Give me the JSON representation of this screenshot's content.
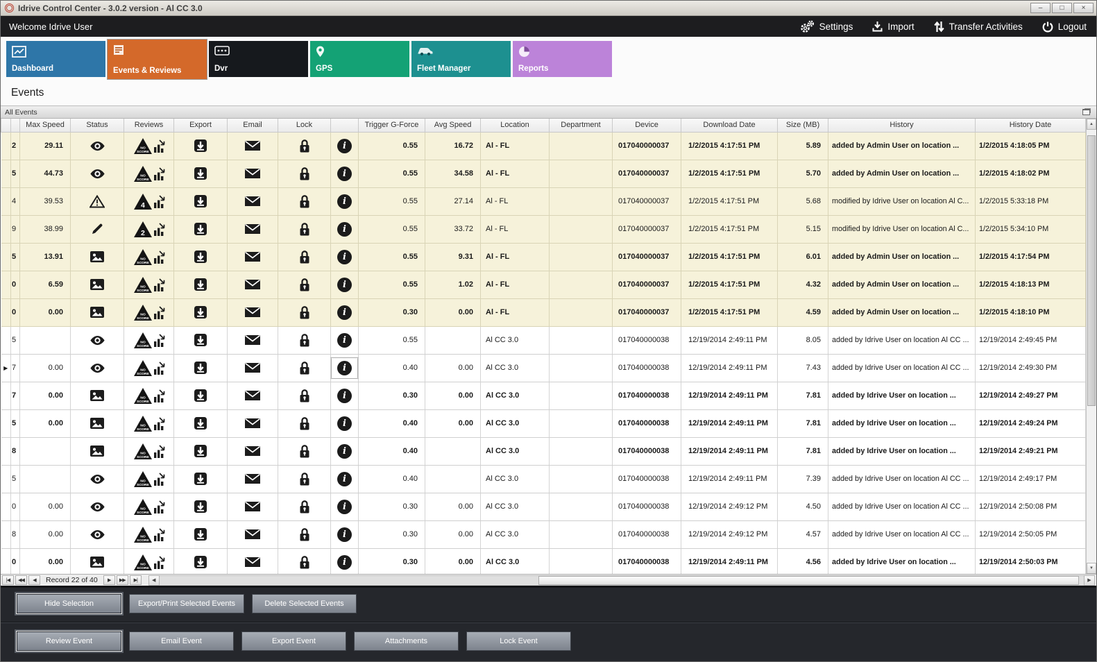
{
  "window": {
    "title": "Idrive Control Center - 3.0.2 version - Al CC 3.0",
    "controls": [
      {
        "name": "minimize",
        "glyph": "–"
      },
      {
        "name": "maximize",
        "glyph": "□"
      },
      {
        "name": "close",
        "glyph": "×"
      }
    ]
  },
  "topbar": {
    "welcome": "Welcome Idrive User",
    "actions": [
      {
        "label": "Settings",
        "icon": "gears"
      },
      {
        "label": "Import",
        "icon": "import"
      },
      {
        "label": "Transfer Activities",
        "icon": "transfer"
      },
      {
        "label": "Logout",
        "icon": "power"
      }
    ]
  },
  "tabs": [
    {
      "label": "Dashboard",
      "icon": "dashboard",
      "color": "#2e76a8",
      "active": false
    },
    {
      "label": "Events & Reviews",
      "icon": "events",
      "color": "#d4692a",
      "active": true
    },
    {
      "label": "Dvr",
      "icon": "dvr",
      "color": "#16191d",
      "active": false
    },
    {
      "label": "GPS",
      "icon": "gps",
      "color": "#14a275",
      "active": false
    },
    {
      "label": "Fleet Manager",
      "icon": "fleet",
      "color": "#1d9090",
      "active": false
    },
    {
      "label": "Reports",
      "icon": "reports",
      "color": "#bc83d9",
      "active": false
    }
  ],
  "page_title": "Events",
  "panel": {
    "title": "All Events"
  },
  "grid": {
    "columns": [
      "",
      "",
      "Max Speed",
      "Status",
      "Reviews",
      "Export",
      "Email",
      "Lock",
      "",
      "Trigger G-Force",
      "Avg Speed",
      "Location",
      "Department",
      "Device",
      "Download Date",
      "Size (MB)",
      "History",
      "History Date"
    ],
    "rows": [
      {
        "id": "2",
        "max_speed": "29.11",
        "status": "eye",
        "review": "no-score",
        "trigger": "0.55",
        "avg_speed": "16.72",
        "location": "Al - FL",
        "department": "",
        "device": "017040000037",
        "download_date": "1/2/2015 4:17:51 PM",
        "size": "5.89",
        "history": "added by Admin User on location ...",
        "history_date": "1/2/2015 4:18:05 PM",
        "bold": true,
        "tone": "beige",
        "selected": false,
        "info_focus": false
      },
      {
        "id": "5",
        "max_speed": "44.73",
        "status": "eye",
        "review": "no-score",
        "trigger": "0.55",
        "avg_speed": "34.58",
        "location": "Al - FL",
        "department": "",
        "device": "017040000037",
        "download_date": "1/2/2015 4:17:51 PM",
        "size": "5.70",
        "history": "added by Admin User on location ...",
        "history_date": "1/2/2015 4:18:02 PM",
        "bold": true,
        "tone": "beige",
        "selected": false,
        "info_focus": false
      },
      {
        "id": "4",
        "max_speed": "39.53",
        "status": "warning",
        "review": "4",
        "trigger": "0.55",
        "avg_speed": "27.14",
        "location": "Al - FL",
        "department": "",
        "device": "017040000037",
        "download_date": "1/2/2015 4:17:51 PM",
        "size": "5.68",
        "history": "modified by Idrive User on location Al C...",
        "history_date": "1/2/2015 5:33:18 PM",
        "bold": false,
        "tone": "beige",
        "selected": false,
        "info_focus": false
      },
      {
        "id": "9",
        "max_speed": "38.99",
        "status": "pencil",
        "review": "2",
        "trigger": "0.55",
        "avg_speed": "33.72",
        "location": "Al - FL",
        "department": "",
        "device": "017040000037",
        "download_date": "1/2/2015 4:17:51 PM",
        "size": "5.15",
        "history": "modified by Idrive User on location Al C...",
        "history_date": "1/2/2015 5:34:10 PM",
        "bold": false,
        "tone": "beige",
        "selected": false,
        "info_focus": false
      },
      {
        "id": "5",
        "max_speed": "13.91",
        "status": "image",
        "review": "no-score",
        "trigger": "0.55",
        "avg_speed": "9.31",
        "location": "Al - FL",
        "department": "",
        "device": "017040000037",
        "download_date": "1/2/2015 4:17:51 PM",
        "size": "6.01",
        "history": "added by Admin User on location ...",
        "history_date": "1/2/2015 4:17:54 PM",
        "bold": true,
        "tone": "beige",
        "selected": false,
        "info_focus": false
      },
      {
        "id": "0",
        "max_speed": "6.59",
        "status": "image",
        "review": "no-score",
        "trigger": "0.55",
        "avg_speed": "1.02",
        "location": "Al - FL",
        "department": "",
        "device": "017040000037",
        "download_date": "1/2/2015 4:17:51 PM",
        "size": "4.32",
        "history": "added by Admin User on location ...",
        "history_date": "1/2/2015 4:18:13 PM",
        "bold": true,
        "tone": "beige",
        "selected": false,
        "info_focus": false
      },
      {
        "id": "0",
        "max_speed": "0.00",
        "status": "image",
        "review": "no-score",
        "trigger": "0.30",
        "avg_speed": "0.00",
        "location": "Al - FL",
        "department": "",
        "device": "017040000037",
        "download_date": "1/2/2015 4:17:51 PM",
        "size": "4.59",
        "history": "added by Admin User on location ...",
        "history_date": "1/2/2015 4:18:10 PM",
        "bold": true,
        "tone": "beige",
        "selected": false,
        "info_focus": false
      },
      {
        "id": "5",
        "max_speed": "",
        "status": "eye",
        "review": "no-score",
        "trigger": "0.55",
        "avg_speed": "",
        "location": "Al CC 3.0",
        "department": "",
        "device": "017040000038",
        "download_date": "12/19/2014 2:49:11 PM",
        "size": "8.05",
        "history": "added by Idrive User on location Al CC ...",
        "history_date": "12/19/2014 2:49:45 PM",
        "bold": false,
        "tone": "white",
        "selected": false,
        "info_focus": false
      },
      {
        "id": "7",
        "max_speed": "0.00",
        "status": "eye",
        "review": "no-score",
        "trigger": "0.40",
        "avg_speed": "0.00",
        "location": "Al CC 3.0",
        "department": "",
        "device": "017040000038",
        "download_date": "12/19/2014 2:49:11 PM",
        "size": "7.43",
        "history": "added by Idrive User on location Al CC ...",
        "history_date": "12/19/2014 2:49:30 PM",
        "bold": false,
        "tone": "white",
        "selected": true,
        "info_focus": true
      },
      {
        "id": "7",
        "max_speed": "0.00",
        "status": "image",
        "review": "no-score",
        "trigger": "0.30",
        "avg_speed": "0.00",
        "location": "Al CC 3.0",
        "department": "",
        "device": "017040000038",
        "download_date": "12/19/2014 2:49:11 PM",
        "size": "7.81",
        "history": "added by Idrive User on location ...",
        "history_date": "12/19/2014 2:49:27 PM",
        "bold": true,
        "tone": "white",
        "selected": false,
        "info_focus": false
      },
      {
        "id": "5",
        "max_speed": "0.00",
        "status": "image",
        "review": "no-score",
        "trigger": "0.40",
        "avg_speed": "0.00",
        "location": "Al CC 3.0",
        "department": "",
        "device": "017040000038",
        "download_date": "12/19/2014 2:49:11 PM",
        "size": "7.81",
        "history": "added by Idrive User on location ...",
        "history_date": "12/19/2014 2:49:24 PM",
        "bold": true,
        "tone": "white",
        "selected": false,
        "info_focus": false
      },
      {
        "id": "8",
        "max_speed": "",
        "status": "image",
        "review": "no-score",
        "trigger": "0.40",
        "avg_speed": "",
        "location": "Al CC 3.0",
        "department": "",
        "device": "017040000038",
        "download_date": "12/19/2014 2:49:11 PM",
        "size": "7.81",
        "history": "added by Idrive User on location ...",
        "history_date": "12/19/2014 2:49:21 PM",
        "bold": true,
        "tone": "white",
        "selected": false,
        "info_focus": false
      },
      {
        "id": "5",
        "max_speed": "",
        "status": "eye",
        "review": "no-score",
        "trigger": "0.40",
        "avg_speed": "",
        "location": "Al CC 3.0",
        "department": "",
        "device": "017040000038",
        "download_date": "12/19/2014 2:49:11 PM",
        "size": "7.39",
        "history": "added by Idrive User on location Al CC ...",
        "history_date": "12/19/2014 2:49:17 PM",
        "bold": false,
        "tone": "white",
        "selected": false,
        "info_focus": false
      },
      {
        "id": "0",
        "max_speed": "0.00",
        "status": "eye",
        "review": "no-score",
        "trigger": "0.30",
        "avg_speed": "0.00",
        "location": "Al CC 3.0",
        "department": "",
        "device": "017040000038",
        "download_date": "12/19/2014 2:49:12 PM",
        "size": "4.50",
        "history": "added by Idrive User on location Al CC ...",
        "history_date": "12/19/2014 2:50:08 PM",
        "bold": false,
        "tone": "white",
        "selected": false,
        "info_focus": false
      },
      {
        "id": "8",
        "max_speed": "0.00",
        "status": "eye",
        "review": "no-score",
        "trigger": "0.30",
        "avg_speed": "0.00",
        "location": "Al CC 3.0",
        "department": "",
        "device": "017040000038",
        "download_date": "12/19/2014 2:49:12 PM",
        "size": "4.57",
        "history": "added by Idrive User on location Al CC ...",
        "history_date": "12/19/2014 2:50:05 PM",
        "bold": false,
        "tone": "white",
        "selected": false,
        "info_focus": false
      },
      {
        "id": "0",
        "max_speed": "0.00",
        "status": "image",
        "review": "no-score",
        "trigger": "0.30",
        "avg_speed": "0.00",
        "location": "Al CC 3.0",
        "department": "",
        "device": "017040000038",
        "download_date": "12/19/2014 2:49:11 PM",
        "size": "4.56",
        "history": "added by Idrive User on location ...",
        "history_date": "12/19/2014 2:50:03 PM",
        "bold": true,
        "tone": "white",
        "selected": false,
        "info_focus": false
      }
    ]
  },
  "pager": {
    "nav_left": [
      "|◀",
      "◀◀",
      "◀"
    ],
    "record_text": "Record 22 of 40",
    "nav_right": [
      "▶",
      "▶▶",
      "▶|"
    ]
  },
  "icons": {
    "info": "i",
    "row_marker": "▶",
    "scroll_up": "▲",
    "scroll_down": "▼",
    "scroll_left": "◀",
    "scroll_right": "▶"
  },
  "selection_actions": [
    {
      "label": "Hide Selection",
      "focused": true
    },
    {
      "label": "Export/Print Selected Events",
      "focused": false
    },
    {
      "label": "Delete Selected  Events",
      "focused": false
    }
  ],
  "event_actions": [
    {
      "label": "Review Event",
      "focused": true
    },
    {
      "label": "Email Event",
      "focused": false
    },
    {
      "label": "Export Event",
      "focused": false
    },
    {
      "label": "Attachments",
      "focused": false
    },
    {
      "label": "Lock Event",
      "focused": false
    }
  ]
}
